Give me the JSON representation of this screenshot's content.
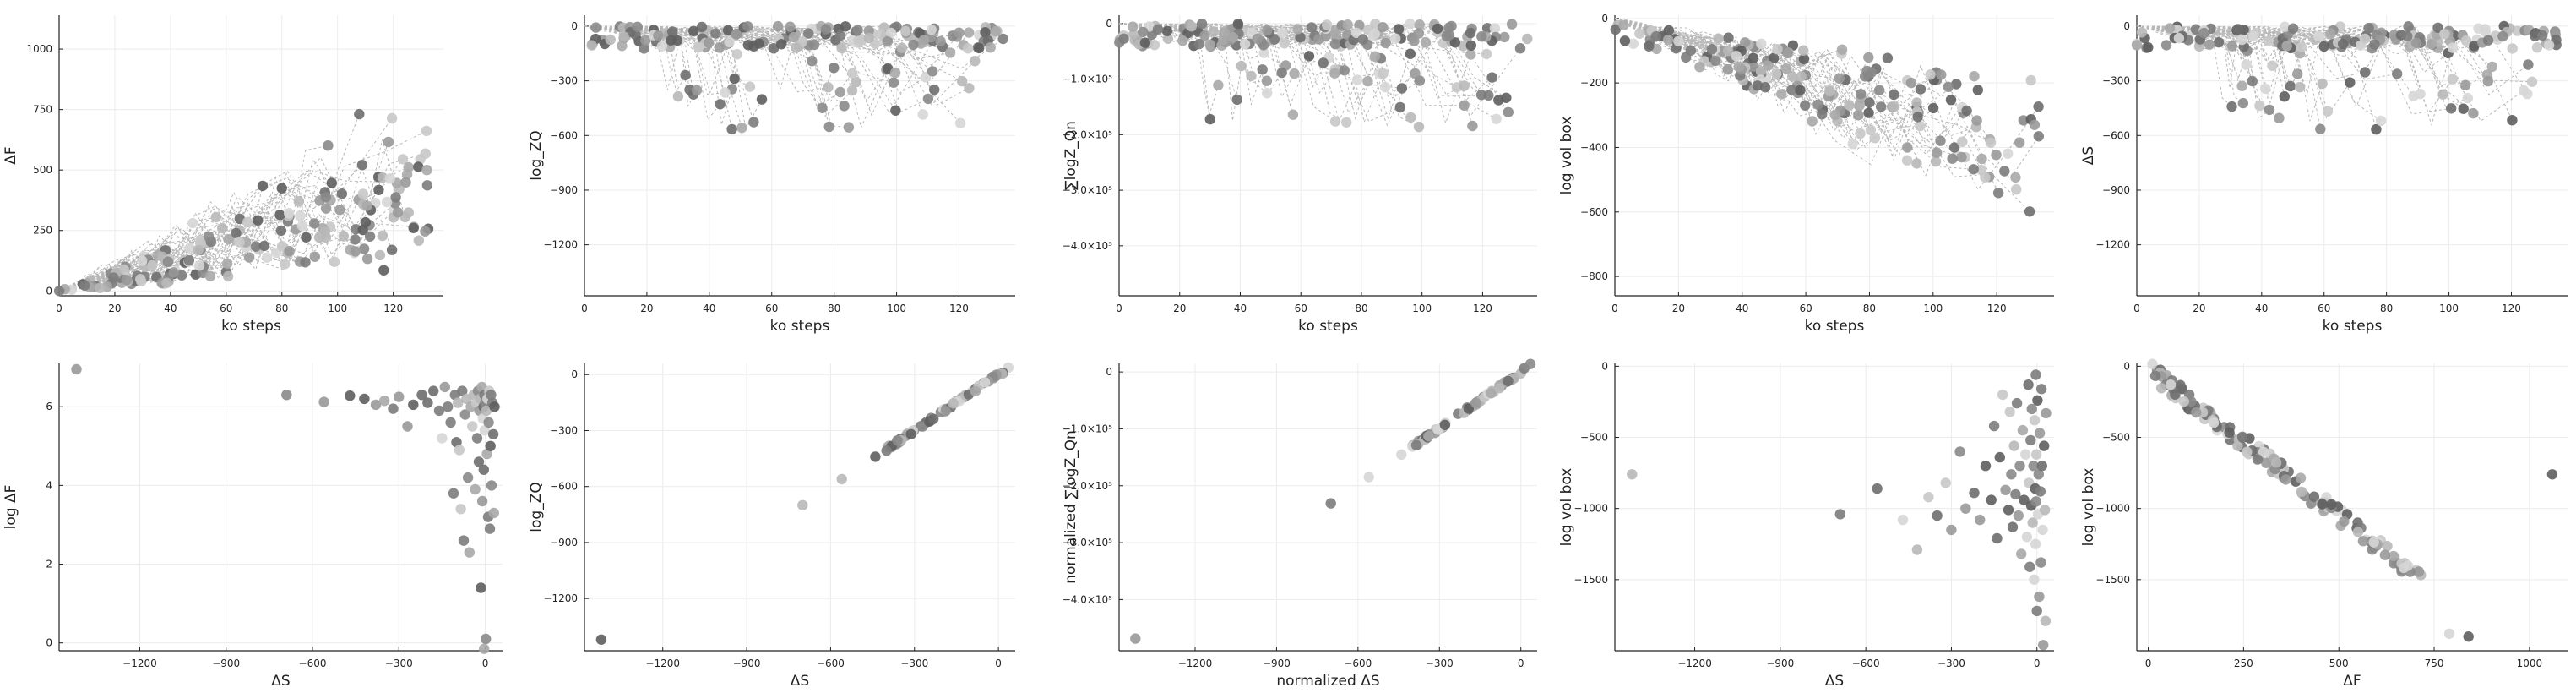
{
  "chart_data": [
    {
      "type": "scatter",
      "xlabel": "ko steps",
      "ylabel": "ΔF",
      "xlim": [
        0,
        138
      ],
      "ylim": [
        -20,
        1140
      ],
      "xticks": [
        "0",
        "20",
        "40",
        "60",
        "80",
        "100",
        "120"
      ],
      "xtick_vals": [
        0,
        20,
        40,
        60,
        80,
        100,
        120
      ],
      "yticks": [
        "0",
        "250",
        "500",
        "750",
        "1000"
      ],
      "ytick_vals": [
        0,
        250,
        500,
        750,
        1000
      ],
      "lines": "rising",
      "grid": true
    },
    {
      "type": "scatter",
      "xlabel": "ko steps",
      "ylabel": "log_ZQ",
      "xlim": [
        0,
        138
      ],
      "ylim": [
        -1480,
        60
      ],
      "xticks": [
        "0",
        "20",
        "40",
        "60",
        "80",
        "100",
        "120"
      ],
      "xtick_vals": [
        0,
        20,
        40,
        60,
        80,
        100,
        120
      ],
      "yticks": [
        "0",
        "−300",
        "−600",
        "−900",
        "−1200"
      ],
      "ytick_vals": [
        0,
        -300,
        -600,
        -900,
        -1200
      ],
      "lines": "falling",
      "grid": true
    },
    {
      "type": "scatter",
      "xlabel": "ko steps",
      "ylabel": "∑logZ_Qn",
      "xlim": [
        0,
        138
      ],
      "ylim": [
        -490000,
        15000
      ],
      "xticks": [
        "0",
        "20",
        "40",
        "60",
        "80",
        "100",
        "120"
      ],
      "xtick_vals": [
        0,
        20,
        40,
        60,
        80,
        100,
        120
      ],
      "yticks": [
        "0",
        "−1.0×10⁵",
        "−2.0×10⁵",
        "−3.0×10⁵",
        "−4.0×10⁵"
      ],
      "ytick_vals": [
        0,
        -100000,
        -200000,
        -300000,
        -400000
      ],
      "lines": "falling",
      "grid": true
    },
    {
      "type": "scatter",
      "xlabel": "ko steps",
      "ylabel": "log vol box",
      "xlim": [
        0,
        138
      ],
      "ylim": [
        -860,
        10
      ],
      "xticks": [
        "0",
        "20",
        "40",
        "60",
        "80",
        "100",
        "120"
      ],
      "xtick_vals": [
        0,
        20,
        40,
        60,
        80,
        100,
        120
      ],
      "yticks": [
        "0",
        "−200",
        "−400",
        "−600",
        "−800"
      ],
      "ytick_vals": [
        0,
        -200,
        -400,
        -600,
        -800
      ],
      "lines": "volbox",
      "grid": true
    },
    {
      "type": "scatter",
      "xlabel": "ko steps",
      "ylabel": "ΔS",
      "xlim": [
        0,
        138
      ],
      "ylim": [
        -1480,
        60
      ],
      "xticks": [
        "0",
        "20",
        "40",
        "60",
        "80",
        "100",
        "120"
      ],
      "xtick_vals": [
        0,
        20,
        40,
        60,
        80,
        100,
        120
      ],
      "yticks": [
        "0",
        "−300",
        "−600",
        "−900",
        "−1200"
      ],
      "ytick_vals": [
        0,
        -300,
        -600,
        -900,
        -1200
      ],
      "lines": "falling",
      "grid": true
    },
    {
      "type": "scatter",
      "xlabel": "ΔS",
      "ylabel": "log ΔF",
      "xlim": [
        -1480,
        60
      ],
      "ylim": [
        -0.2,
        7.1
      ],
      "xticks": [
        "−1200",
        "−900",
        "−600",
        "−300",
        "0"
      ],
      "xtick_vals": [
        -1200,
        -900,
        -600,
        -300,
        0
      ],
      "yticks": [
        "0",
        "2",
        "4",
        "6"
      ],
      "ytick_vals": [
        0,
        2,
        4,
        6
      ],
      "grid": true,
      "points": [
        [
          -1420,
          6.95
        ],
        [
          -690,
          6.3
        ],
        [
          -560,
          6.12
        ],
        [
          -470,
          6.28
        ],
        [
          -420,
          6.2
        ],
        [
          -380,
          6.05
        ],
        [
          -350,
          6.15
        ],
        [
          -320,
          5.95
        ],
        [
          -300,
          6.25
        ],
        [
          -270,
          5.5
        ],
        [
          -250,
          6.05
        ],
        [
          -220,
          6.3
        ],
        [
          -200,
          6.1
        ],
        [
          -180,
          6.4
        ],
        [
          -160,
          5.9
        ],
        [
          -150,
          5.2
        ],
        [
          -140,
          6.5
        ],
        [
          -130,
          6.0
        ],
        [
          -120,
          5.6
        ],
        [
          -110,
          3.8
        ],
        [
          -105,
          6.3
        ],
        [
          -100,
          5.1
        ],
        [
          -95,
          6.1
        ],
        [
          -90,
          4.9
        ],
        [
          -85,
          3.4
        ],
        [
          -80,
          6.4
        ],
        [
          -75,
          2.6
        ],
        [
          -70,
          5.8
        ],
        [
          -65,
          6.2
        ],
        [
          -60,
          4.2
        ],
        [
          -55,
          2.3
        ],
        [
          -50,
          6.0
        ],
        [
          -45,
          5.5
        ],
        [
          -40,
          6.3
        ],
        [
          -35,
          3.9
        ],
        [
          -30,
          6.1
        ],
        [
          -28,
          5.2
        ],
        [
          -25,
          6.4
        ],
        [
          -22,
          4.6
        ],
        [
          -20,
          5.9
        ],
        [
          -18,
          6.2
        ],
        [
          -15,
          1.4
        ],
        [
          -12,
          6.5
        ],
        [
          -10,
          3.6
        ],
        [
          -8,
          5.7
        ],
        [
          -6,
          6.0
        ],
        [
          -5,
          4.4
        ],
        [
          -4,
          -0.15
        ],
        [
          -3,
          6.3
        ],
        [
          -2,
          5.4
        ],
        [
          0,
          6.1
        ],
        [
          2,
          0.1
        ],
        [
          4,
          5.9
        ],
        [
          6,
          4.8
        ],
        [
          8,
          6.2
        ],
        [
          10,
          3.2
        ],
        [
          12,
          5.6
        ],
        [
          14,
          6.4
        ],
        [
          16,
          2.9
        ],
        [
          18,
          5.0
        ],
        [
          20,
          6.3
        ],
        [
          22,
          4.0
        ],
        [
          25,
          6.1
        ],
        [
          28,
          5.3
        ],
        [
          30,
          3.3
        ],
        [
          32,
          6.0
        ]
      ]
    },
    {
      "type": "scatter",
      "xlabel": "ΔS",
      "ylabel": "log_ZQ",
      "xlim": [
        -1480,
        60
      ],
      "ylim": [
        -1480,
        60
      ],
      "xticks": [
        "−1200",
        "−900",
        "−600",
        "−300",
        "0"
      ],
      "xtick_vals": [
        -1200,
        -900,
        -600,
        -300,
        0
      ],
      "yticks": [
        "0",
        "−300",
        "−600",
        "−900",
        "−1200"
      ],
      "ytick_vals": [
        0,
        -300,
        -600,
        -900,
        -1200
      ],
      "grid": true,
      "line_series": "diag"
    },
    {
      "type": "scatter",
      "xlabel": "normalized ΔS",
      "ylabel": "normalized ∑logZ_Qn",
      "xlim": [
        -1480,
        60
      ],
      "ylim": [
        -490000,
        15000
      ],
      "xticks": [
        "−1200",
        "−900",
        "−600",
        "−300",
        "0"
      ],
      "xtick_vals": [
        -1200,
        -900,
        -600,
        -300,
        0
      ],
      "yticks": [
        "0",
        "−1.0×10⁵",
        "−2.0×10⁵",
        "−3.0×10⁵",
        "−4.0×10⁵"
      ],
      "ytick_vals": [
        0,
        -100000,
        -200000,
        -300000,
        -400000
      ],
      "grid": true,
      "line_series": "diag2"
    },
    {
      "type": "scatter",
      "xlabel": "ΔS",
      "ylabel": "log vol box",
      "xlim": [
        -1480,
        60
      ],
      "ylim": [
        -2000,
        20
      ],
      "xticks": [
        "−1200",
        "−900",
        "−600",
        "−300",
        "0"
      ],
      "xtick_vals": [
        -1200,
        -900,
        -600,
        -300,
        0
      ],
      "yticks": [
        "0",
        "−500",
        "−1000",
        "−1500"
      ],
      "ytick_vals": [
        0,
        -500,
        -1000,
        -1500
      ],
      "grid": true,
      "points": [
        [
          -1420,
          -760
        ],
        [
          -690,
          -1040
        ],
        [
          -560,
          -860
        ],
        [
          -470,
          -1080
        ],
        [
          -420,
          -1290
        ],
        [
          -380,
          -920
        ],
        [
          -350,
          -1050
        ],
        [
          -320,
          -820
        ],
        [
          -300,
          -1150
        ],
        [
          -270,
          -600
        ],
        [
          -250,
          -1000
        ],
        [
          -220,
          -890
        ],
        [
          -200,
          -1080
        ],
        [
          -180,
          -700
        ],
        [
          -160,
          -940
        ],
        [
          -150,
          -420
        ],
        [
          -140,
          -1210
        ],
        [
          -130,
          -640
        ],
        [
          -120,
          -200
        ],
        [
          -110,
          -870
        ],
        [
          -100,
          -1010
        ],
        [
          -95,
          -320
        ],
        [
          -90,
          -760
        ],
        [
          -85,
          -1130
        ],
        [
          -80,
          -560
        ],
        [
          -75,
          -900
        ],
        [
          -70,
          -260
        ],
        [
          -65,
          -1050
        ],
        [
          -60,
          -700
        ],
        [
          -55,
          -1320
        ],
        [
          -50,
          -450
        ],
        [
          -45,
          -940
        ],
        [
          -40,
          -620
        ],
        [
          -35,
          -1200
        ],
        [
          -30,
          -130
        ],
        [
          -28,
          -820
        ],
        [
          -25,
          -1410
        ],
        [
          -22,
          -520
        ],
        [
          -20,
          -980
        ],
        [
          -18,
          -300
        ],
        [
          -15,
          -1100
        ],
        [
          -12,
          -700
        ],
        [
          -10,
          -1500
        ],
        [
          -8,
          -380
        ],
        [
          -6,
          -860
        ],
        [
          -5,
          -1250
        ],
        [
          -4,
          -60
        ],
        [
          -3,
          -950
        ],
        [
          -2,
          -620
        ],
        [
          0,
          -1720
        ],
        [
          2,
          -240
        ],
        [
          4,
          -1040
        ],
        [
          6,
          -760
        ],
        [
          8,
          -1620
        ],
        [
          10,
          -470
        ],
        [
          12,
          -880
        ],
        [
          14,
          -1380
        ],
        [
          16,
          -160
        ],
        [
          18,
          -700
        ],
        [
          20,
          -1150
        ],
        [
          22,
          -1960
        ],
        [
          25,
          -560
        ],
        [
          28,
          -1010
        ],
        [
          30,
          -1790
        ],
        [
          32,
          -330
        ]
      ]
    },
    {
      "type": "scatter",
      "xlabel": "ΔF",
      "ylabel": "log vol box",
      "xlim": [
        -30,
        1100
      ],
      "ylim": [
        -2000,
        20
      ],
      "xticks": [
        "0",
        "250",
        "500",
        "750",
        "1000"
      ],
      "xtick_vals": [
        0,
        250,
        500,
        750,
        1000
      ],
      "yticks": [
        "0",
        "−500",
        "−1000",
        "−1500"
      ],
      "ytick_vals": [
        0,
        -500,
        -1000,
        -1500
      ],
      "grid": true,
      "line_series": "volF"
    }
  ]
}
